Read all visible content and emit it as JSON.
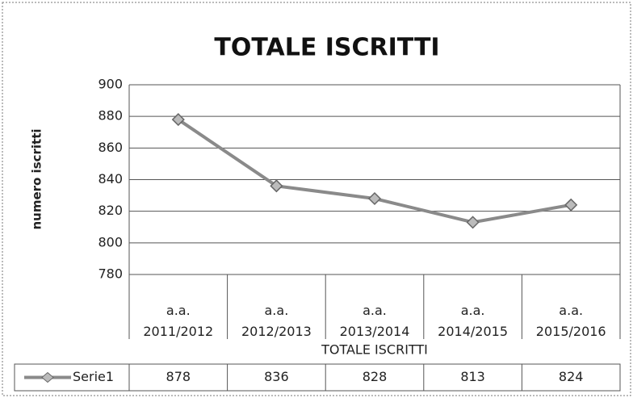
{
  "chart_data": {
    "type": "line",
    "title": "TOTALE ISCRITTI",
    "y_label": "numero iscritti",
    "x_label": "TOTALE ISCRITTI",
    "categories": [
      "a.a.\n2011/2012",
      "a.a.\n2012/2013",
      "a.a.\n2013/2014",
      "a.a.\n2014/2015",
      "a.a.\n2015/2016"
    ],
    "series": [
      {
        "name": "Serie1",
        "color": "#8a8a8a",
        "values": [
          878,
          836,
          828,
          813,
          824
        ]
      }
    ],
    "ylim": [
      780,
      900
    ],
    "yticks": [
      780,
      800,
      820,
      840,
      860,
      880,
      900
    ],
    "grid": true,
    "data_table": true
  }
}
